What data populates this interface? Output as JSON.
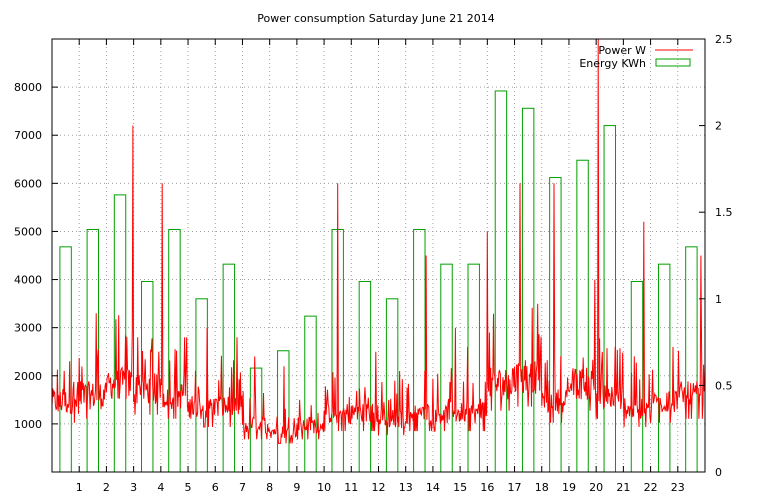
{
  "chart_data": {
    "type": "line+bar",
    "title": "Power consumption Saturday June 21 2014",
    "x_ticks": [
      1,
      2,
      3,
      4,
      5,
      6,
      7,
      8,
      9,
      10,
      11,
      12,
      13,
      14,
      15,
      16,
      17,
      18,
      19,
      20,
      21,
      22,
      23
    ],
    "x_range": [
      0,
      24
    ],
    "y_left_range": [
      0,
      9000
    ],
    "y_left_ticks": [
      1000,
      2000,
      3000,
      4000,
      5000,
      6000,
      7000,
      8000
    ],
    "y_right_range": [
      0,
      2.5
    ],
    "y_right_ticks": [
      "0",
      "0.5",
      "1",
      "1.5",
      "2",
      "2.5"
    ],
    "grid": true,
    "legend_position": "top-right",
    "colors": {
      "power": "#ff0000",
      "energy": "#00a000"
    },
    "series": [
      {
        "name": "Energy KWh",
        "type": "bar",
        "axis": "right",
        "x": [
          0,
          1,
          2,
          3,
          4,
          5,
          6,
          7,
          8,
          9,
          10,
          11,
          12,
          13,
          14,
          15,
          16,
          17,
          18,
          19,
          20,
          21,
          22,
          23
        ],
        "values": [
          1.3,
          1.4,
          1.6,
          1.1,
          1.4,
          1.0,
          1.2,
          0.6,
          0.7,
          0.9,
          1.4,
          1.1,
          1.0,
          1.4,
          1.2,
          1.2,
          2.2,
          2.1,
          1.7,
          1.8,
          2.0,
          1.1,
          1.2,
          1.3
        ]
      },
      {
        "name": "Power W",
        "type": "line",
        "axis": "left",
        "hourly_baseline": [
          1200,
          1300,
          1500,
          1400,
          1300,
          1100,
          1100,
          800,
          700,
          800,
          1000,
          1000,
          900,
          1000,
          1000,
          1000,
          1500,
          1600,
          1200,
          1500,
          1300,
          1100,
          1200,
          1300
        ],
        "hourly_peak": [
          2300,
          3300,
          7200,
          2800,
          6000,
          3000,
          2800,
          2400,
          2200,
          1500,
          6000,
          2500,
          2100,
          4500,
          3000,
          2600,
          5000,
          6000,
          6000,
          4000,
          9000,
          5200,
          2600,
          4500
        ]
      }
    ]
  }
}
